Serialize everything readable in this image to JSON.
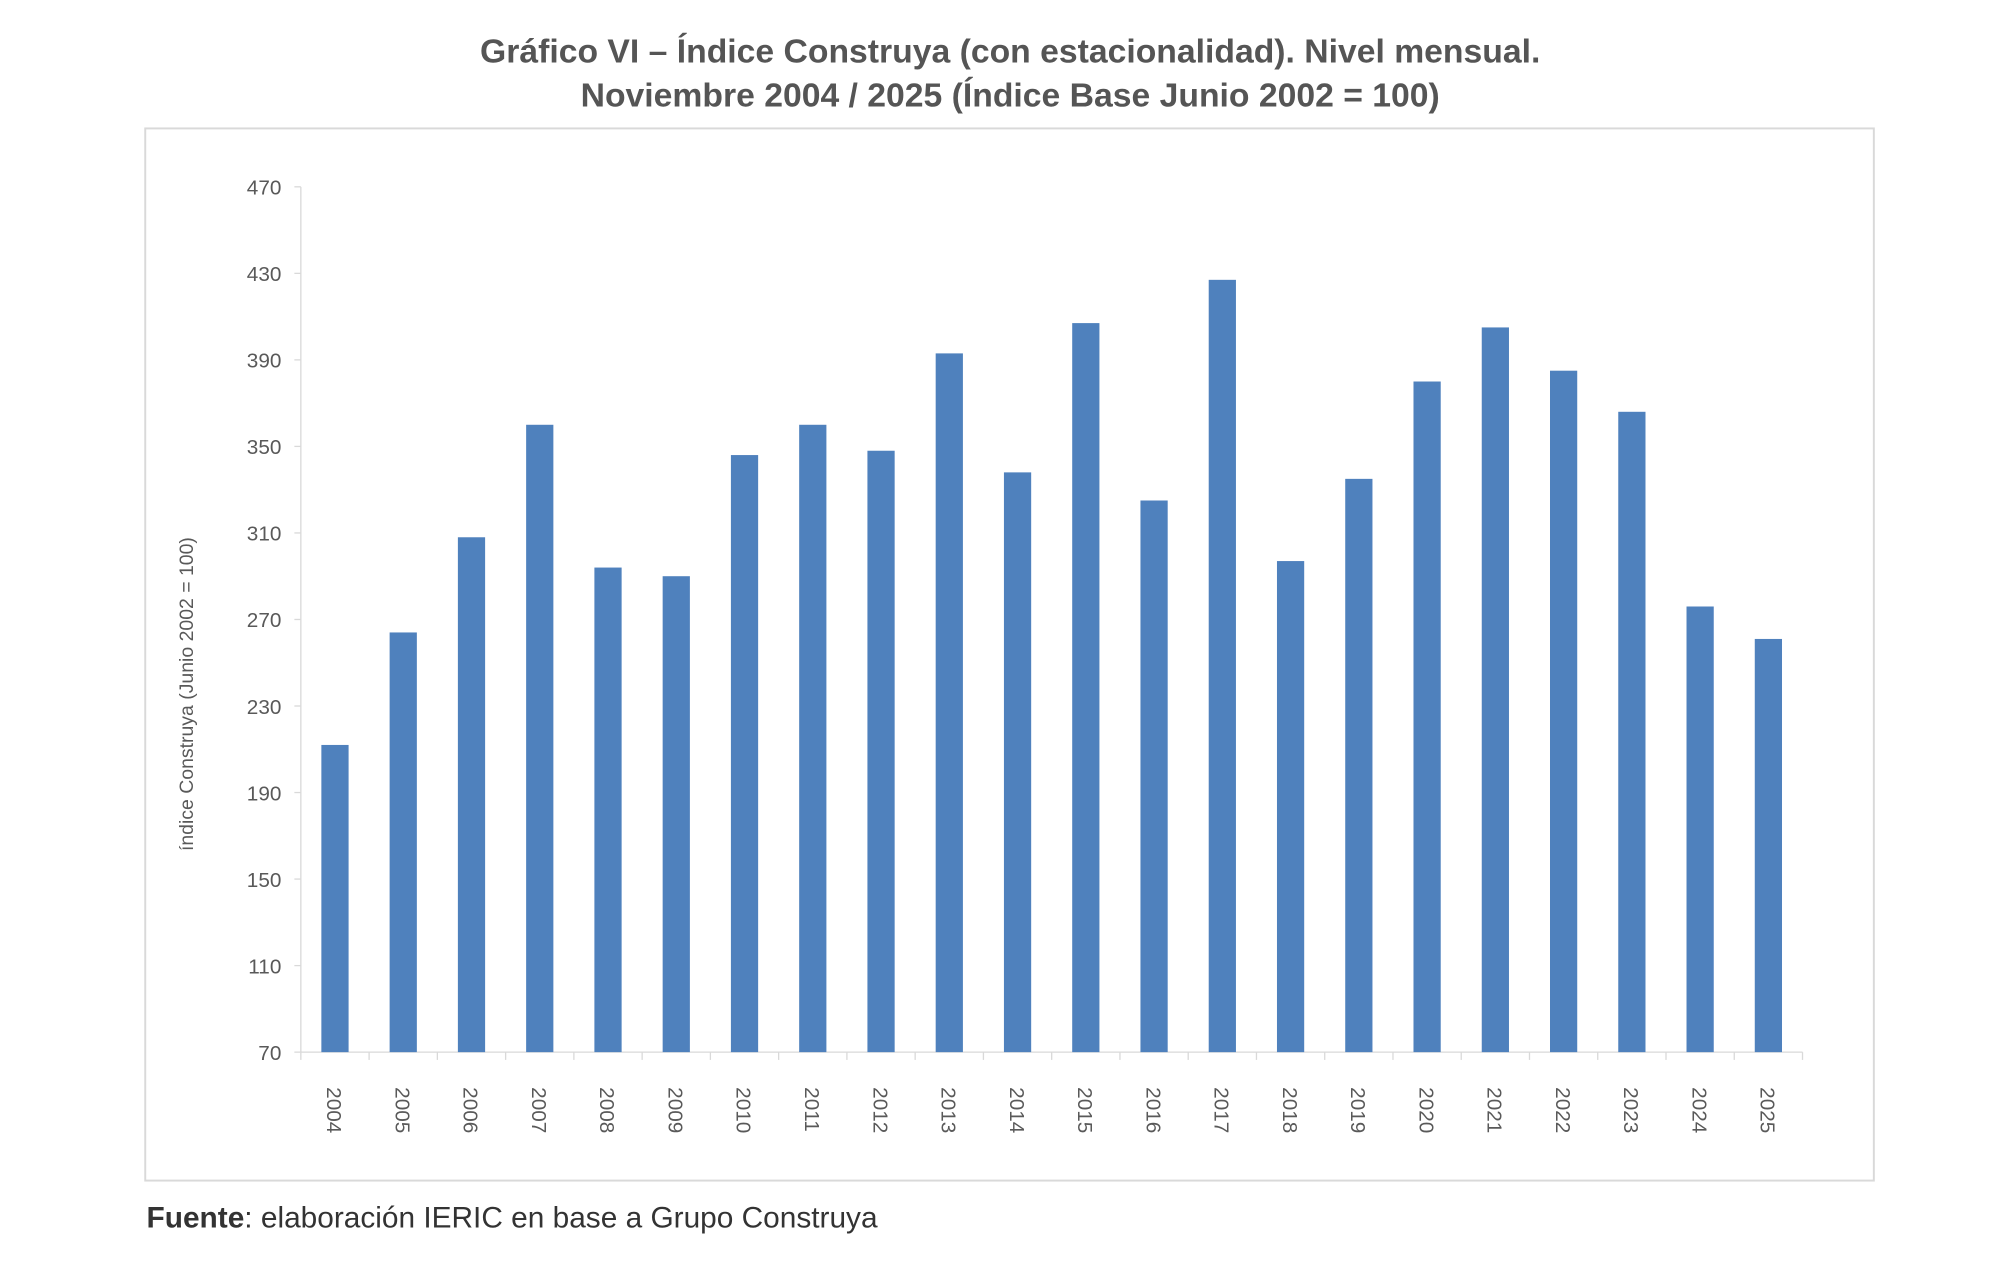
{
  "chart_data": {
    "type": "bar",
    "title": "Gráfico VI – Índice Construya (con estacionalidad). Nivel mensual.",
    "subtitle": "Noviembre 2004 / 2025 (Índice Base Junio 2002 = 100)",
    "xlabel": "",
    "ylabel": "índice Construya (Junio 2002 = 100)",
    "ylim": [
      70,
      470
    ],
    "yticks": [
      70,
      110,
      150,
      190,
      230,
      270,
      310,
      350,
      390,
      430,
      470
    ],
    "grid": false,
    "color": "#4F81BD",
    "categories": [
      "2004",
      "2005",
      "2006",
      "2007",
      "2008",
      "2009",
      "2010",
      "2011",
      "2012",
      "2013",
      "2014",
      "2015",
      "2016",
      "2017",
      "2018",
      "2019",
      "2020",
      "2021",
      "2022",
      "2023",
      "2024",
      "2025"
    ],
    "values": [
      212,
      264,
      308,
      360,
      294,
      290,
      346,
      360,
      348,
      393,
      338,
      407,
      325,
      427,
      297,
      335,
      380,
      405,
      385,
      366,
      276,
      261
    ]
  },
  "source": {
    "label": "Fuente",
    "text": ": elaboración IERIC en base a Grupo Construya"
  }
}
